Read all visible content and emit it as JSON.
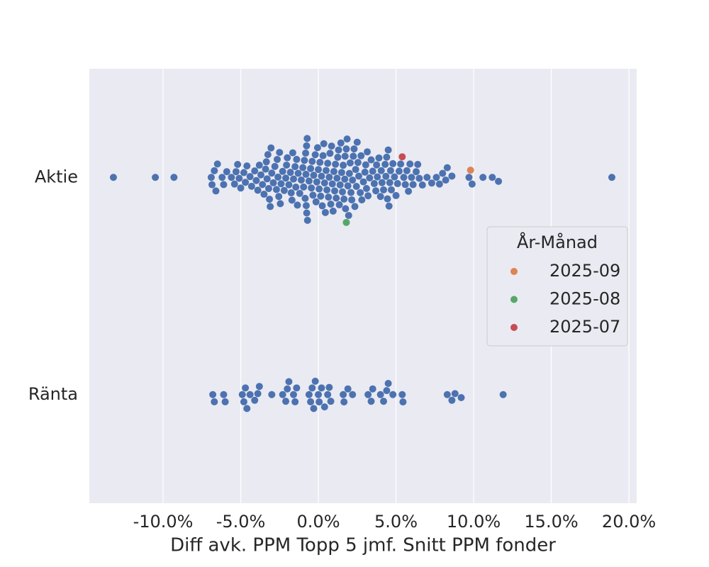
{
  "chart_data": {
    "type": "swarm",
    "categories": [
      "Aktie",
      "Ränta"
    ],
    "xlabel": "Diff avk. PPM Topp 5 jmf. Snitt PPM fonder",
    "xlim": [
      -14.75,
      20.5
    ],
    "xticks": [
      {
        "value": -10,
        "label": "-10.0%"
      },
      {
        "value": -5,
        "label": "-5.0%"
      },
      {
        "value": 0,
        "label": "0.0%"
      },
      {
        "value": 5,
        "label": "5.0%"
      },
      {
        "value": 10,
        "label": "10.0%"
      },
      {
        "value": 15,
        "label": "15.0%"
      },
      {
        "value": 20,
        "label": "20.0%"
      }
    ],
    "grid": true,
    "legend": {
      "title": "År-Månad",
      "position": "center right"
    },
    "series": [
      {
        "color": "#4c72b0",
        "values": [
          [
            -13.2,
            -10.5,
            -9.3,
            -6.9,
            -6.85,
            -6.7,
            -6.6,
            -6.5,
            -6.2,
            -6.1,
            -5.9,
            -5.6,
            -5.4,
            -5.3,
            -5.2,
            -5.1,
            -5.0,
            -4.8,
            -4.7,
            -4.6,
            -4.4,
            -4.3,
            -4.1,
            -4.0,
            -3.9,
            -3.8,
            -3.7,
            -3.6,
            -3.5,
            -3.4,
            -3.35,
            -3.3,
            -3.25,
            -3.2,
            -3.15,
            -3.1,
            -3.05,
            -3.0,
            -2.9,
            -2.8,
            -2.7,
            -2.65,
            -2.6,
            -2.55,
            -2.5,
            -2.45,
            -2.4,
            -2.3,
            -2.2,
            -2.1,
            -2.05,
            -2.0,
            -1.9,
            -1.8,
            -1.75,
            -1.7,
            -1.65,
            -1.6,
            -1.5,
            -1.45,
            -1.4,
            -1.35,
            -1.3,
            -1.2,
            -1.1,
            -1.0,
            -0.95,
            -0.9,
            -0.85,
            -0.82,
            -0.8,
            -0.78,
            -0.76,
            -0.75,
            -0.72,
            -0.7,
            -0.6,
            -0.5,
            -0.45,
            -0.4,
            -0.35,
            -0.3,
            -0.2,
            -0.15,
            -0.1,
            -0.05,
            0.0,
            0.05,
            0.1,
            0.15,
            0.2,
            0.25,
            0.3,
            0.35,
            0.4,
            0.45,
            0.5,
            0.55,
            0.6,
            0.65,
            0.7,
            0.75,
            0.8,
            0.85,
            0.9,
            0.95,
            1.0,
            1.05,
            1.1,
            1.15,
            1.2,
            1.25,
            1.3,
            1.35,
            1.4,
            1.45,
            1.5,
            1.55,
            1.6,
            1.65,
            1.7,
            1.72,
            1.75,
            1.8,
            1.85,
            1.9,
            1.95,
            2.0,
            2.05,
            2.1,
            2.15,
            2.2,
            2.25,
            2.3,
            2.35,
            2.4,
            2.45,
            2.5,
            2.55,
            2.6,
            2.7,
            2.75,
            2.8,
            2.9,
            3.0,
            3.05,
            3.1,
            3.15,
            3.2,
            3.3,
            3.4,
            3.5,
            3.6,
            3.7,
            3.75,
            3.8,
            3.9,
            4.0,
            4.05,
            4.1,
            4.2,
            4.3,
            4.35,
            4.4,
            4.45,
            4.5,
            4.55,
            4.6,
            4.65,
            4.7,
            4.8,
            4.9,
            5.0,
            5.1,
            5.2,
            5.3,
            5.5,
            5.6,
            5.7,
            5.8,
            5.9,
            6.0,
            6.1,
            6.3,
            6.4,
            6.5,
            6.7,
            7.0,
            7.3,
            7.6,
            7.8,
            8.0,
            8.2,
            8.3,
            8.6,
            9.7,
            9.9,
            10.6,
            11.2,
            11.6,
            18.9
          ],
          [
            -6.8,
            -6.7,
            -6.1,
            -6.0,
            -4.9,
            -4.8,
            -4.7,
            -4.6,
            -4.4,
            -4.1,
            -3.9,
            -3.8,
            -3.0,
            -2.3,
            -2.1,
            -2.0,
            -1.9,
            -1.6,
            -1.5,
            -1.4,
            -0.6,
            -0.5,
            -0.4,
            -0.3,
            -0.2,
            0.0,
            0.05,
            0.2,
            0.4,
            0.6,
            0.7,
            0.8,
            1.6,
            1.65,
            1.9,
            2.2,
            3.2,
            3.4,
            3.5,
            4.0,
            4.2,
            4.4,
            4.5,
            4.8,
            5.4,
            5.45,
            8.3,
            8.6,
            8.8,
            9.2,
            11.9
          ]
        ]
      },
      {
        "name": "2025-09",
        "color": "#dd8452",
        "values": [
          [
            9.8
          ],
          []
        ]
      },
      {
        "name": "2025-08",
        "color": "#55a868",
        "values": [
          [
            1.8
          ],
          []
        ]
      },
      {
        "name": "2025-07",
        "color": "#c44e52",
        "values": [
          [
            5.4
          ],
          []
        ]
      }
    ]
  }
}
